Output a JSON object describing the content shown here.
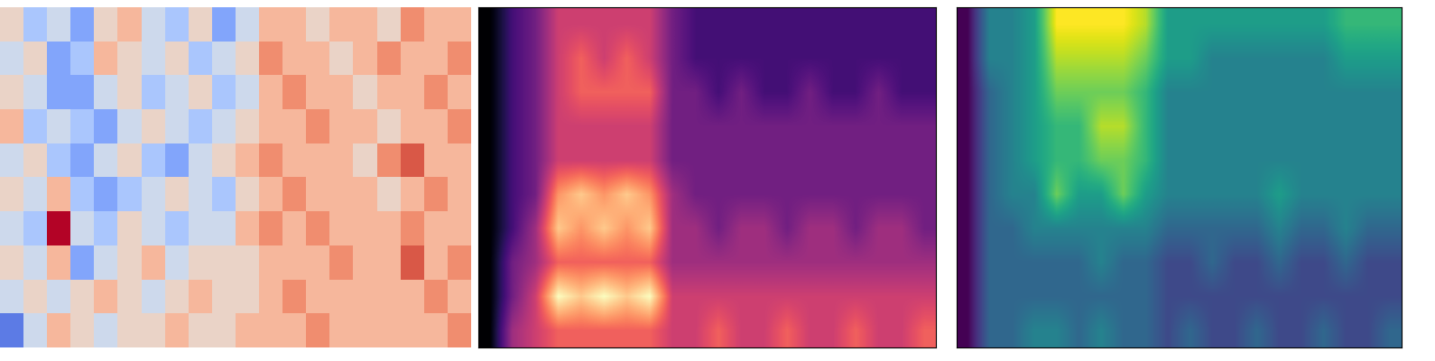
{
  "chart_data": [
    {
      "type": "heatmap",
      "color": "coolwarm",
      "tick_labels": false,
      "zlim": [
        0,
        9
      ],
      "cells": [
        [
          5,
          3,
          4,
          2,
          5,
          6,
          4,
          3,
          5,
          2,
          4,
          6,
          6,
          5,
          6,
          6,
          5,
          7,
          6,
          6
        ],
        [
          4,
          5,
          2,
          3,
          6,
          5,
          4,
          5,
          3,
          4,
          5,
          7,
          6,
          6,
          5,
          6,
          7,
          6,
          6,
          7
        ],
        [
          5,
          4,
          2,
          2,
          4,
          5,
          3,
          4,
          5,
          3,
          4,
          6,
          7,
          6,
          6,
          5,
          6,
          6,
          7,
          6
        ],
        [
          6,
          3,
          4,
          3,
          2,
          4,
          5,
          4,
          3,
          4,
          5,
          6,
          6,
          7,
          6,
          6,
          5,
          6,
          6,
          7
        ],
        [
          4,
          5,
          3,
          2,
          4,
          5,
          3,
          2,
          4,
          5,
          6,
          7,
          6,
          6,
          6,
          5,
          7,
          8,
          6,
          6
        ],
        [
          5,
          4,
          6,
          3,
          2,
          3,
          4,
          5,
          4,
          3,
          5,
          6,
          7,
          6,
          6,
          6,
          5,
          6,
          7,
          6
        ],
        [
          4,
          3,
          9,
          4,
          3,
          5,
          4,
          3,
          4,
          4,
          6,
          7,
          6,
          7,
          6,
          6,
          6,
          7,
          6,
          6
        ],
        [
          5,
          4,
          6,
          2,
          4,
          5,
          6,
          4,
          5,
          5,
          5,
          6,
          6,
          6,
          7,
          6,
          6,
          8,
          6,
          7
        ],
        [
          4,
          5,
          4,
          5,
          6,
          5,
          4,
          5,
          6,
          5,
          5,
          6,
          7,
          6,
          6,
          6,
          6,
          6,
          7,
          6
        ],
        [
          1,
          4,
          6,
          5,
          4,
          5,
          5,
          6,
          5,
          5,
          6,
          6,
          6,
          7,
          6,
          6,
          6,
          6,
          6,
          7
        ]
      ]
    },
    {
      "type": "heatmap",
      "color": "magma",
      "tick_labels": false,
      "zlim": [
        0,
        9
      ],
      "cells": [
        [
          0,
          2,
          3,
          5,
          5,
          5,
          5,
          5,
          3,
          2,
          2,
          2,
          2,
          2,
          2,
          2,
          2,
          2,
          2,
          2
        ],
        [
          0,
          2,
          3,
          5,
          6,
          5,
          6,
          5,
          3,
          2,
          2,
          2,
          2,
          2,
          2,
          2,
          2,
          2,
          2,
          2
        ],
        [
          0,
          2,
          3,
          5,
          6,
          6,
          6,
          6,
          3,
          3,
          2,
          3,
          2,
          2,
          3,
          2,
          2,
          3,
          2,
          2
        ],
        [
          0,
          2,
          3,
          5,
          5,
          5,
          5,
          5,
          3,
          3,
          3,
          3,
          3,
          3,
          3,
          3,
          3,
          3,
          3,
          3
        ],
        [
          0,
          2,
          3,
          5,
          5,
          5,
          5,
          5,
          3,
          3,
          3,
          3,
          3,
          3,
          3,
          3,
          3,
          3,
          3,
          3
        ],
        [
          0,
          2,
          3,
          7,
          8,
          7,
          8,
          7,
          4,
          3,
          3,
          3,
          3,
          3,
          3,
          3,
          3,
          3,
          3,
          3
        ],
        [
          0,
          2,
          4,
          8,
          7,
          8,
          7,
          8,
          4,
          4,
          3,
          4,
          4,
          3,
          4,
          4,
          3,
          4,
          4,
          3
        ],
        [
          0,
          3,
          4,
          6,
          6,
          6,
          6,
          6,
          4,
          4,
          4,
          4,
          4,
          4,
          4,
          4,
          4,
          4,
          4,
          4
        ],
        [
          0,
          3,
          5,
          9,
          8,
          9,
          8,
          9,
          5,
          5,
          5,
          5,
          5,
          5,
          5,
          5,
          5,
          5,
          5,
          5
        ],
        [
          0,
          4,
          5,
          6,
          6,
          6,
          6,
          6,
          5,
          5,
          6,
          5,
          5,
          6,
          5,
          5,
          6,
          5,
          5,
          6
        ]
      ]
    },
    {
      "type": "heatmap",
      "color": "viridis",
      "tick_labels": false,
      "zlim": [
        0,
        9
      ],
      "cells": [
        [
          0,
          4,
          4,
          5,
          9,
          9,
          9,
          9,
          8,
          5,
          5,
          5,
          5,
          5,
          5,
          5,
          5,
          6,
          6,
          6
        ],
        [
          0,
          4,
          4,
          5,
          8,
          8,
          8,
          8,
          7,
          5,
          5,
          4,
          4,
          4,
          4,
          4,
          4,
          5,
          5,
          5
        ],
        [
          0,
          3,
          4,
          5,
          7,
          7,
          7,
          7,
          6,
          4,
          4,
          4,
          4,
          4,
          4,
          4,
          4,
          4,
          4,
          4
        ],
        [
          0,
          3,
          4,
          5,
          6,
          6,
          8,
          8,
          6,
          4,
          4,
          4,
          4,
          4,
          4,
          4,
          4,
          4,
          4,
          4
        ],
        [
          0,
          3,
          4,
          5,
          6,
          6,
          7,
          7,
          6,
          4,
          4,
          4,
          4,
          4,
          4,
          4,
          4,
          4,
          4,
          4
        ],
        [
          0,
          3,
          4,
          4,
          7,
          5,
          5,
          7,
          5,
          4,
          4,
          4,
          4,
          4,
          5,
          4,
          4,
          4,
          4,
          4
        ],
        [
          0,
          3,
          3,
          4,
          4,
          4,
          4,
          4,
          4,
          3,
          3,
          3,
          3,
          3,
          4,
          3,
          3,
          4,
          3,
          3
        ],
        [
          0,
          3,
          3,
          3,
          3,
          3,
          4,
          3,
          3,
          2,
          2,
          3,
          2,
          2,
          3,
          2,
          2,
          3,
          2,
          2
        ],
        [
          0,
          3,
          3,
          3,
          3,
          3,
          3,
          3,
          3,
          2,
          2,
          2,
          2,
          2,
          2,
          2,
          2,
          2,
          2,
          2
        ],
        [
          0,
          3,
          3,
          4,
          4,
          3,
          4,
          3,
          3,
          2,
          3,
          2,
          2,
          3,
          2,
          2,
          3,
          2,
          2,
          3
        ]
      ]
    }
  ]
}
